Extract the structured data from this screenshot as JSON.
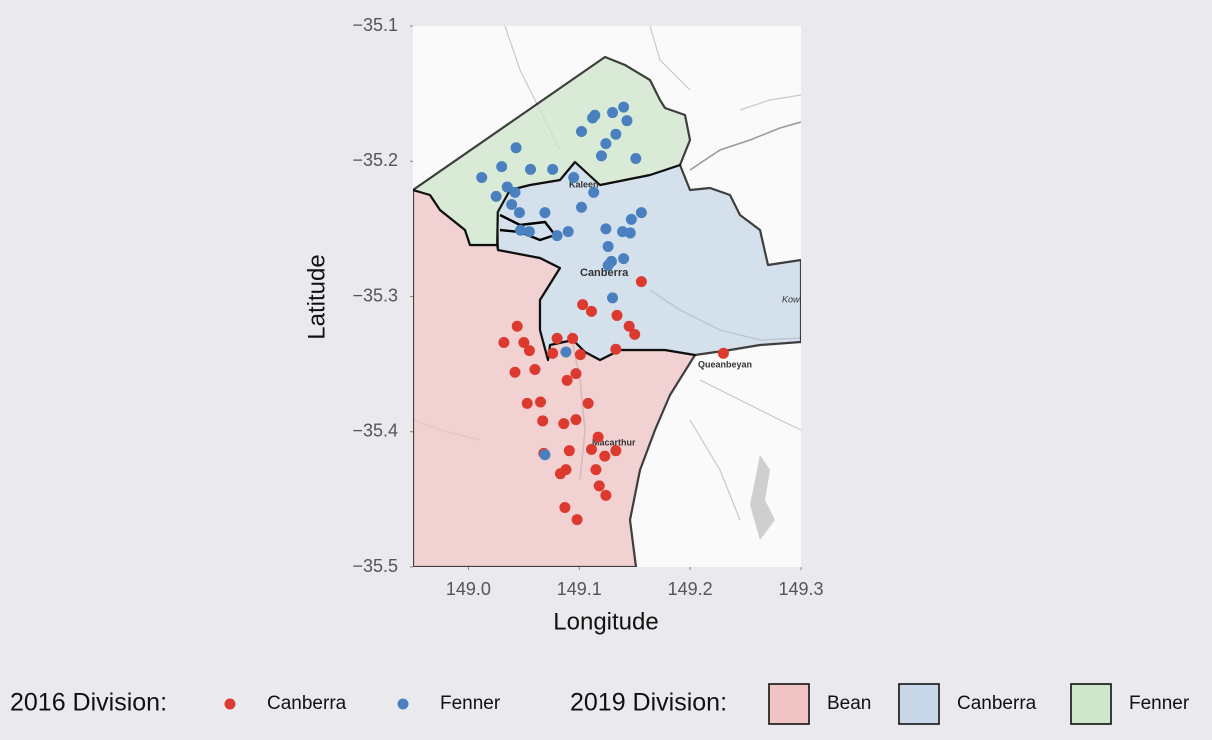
{
  "chart_data": {
    "type": "scatter",
    "xlabel": "Longitude",
    "ylabel": "Latitude",
    "xlim": [
      148.95,
      149.3
    ],
    "ylim": [
      -35.5,
      -35.1
    ],
    "xticks": [
      {
        "value": 149.0,
        "label": "149.0"
      },
      149.1,
      149.2,
      149.3
    ],
    "yticks": [
      {
        "value": -35.1,
        "label": "−35.1"
      },
      {
        "value": -35.2,
        "label": "−35.2"
      },
      {
        "value": -35.3,
        "label": "−35.3"
      },
      {
        "value": -35.4,
        "label": "−35.4"
      },
      {
        "value": -35.5,
        "label": "−35.5"
      }
    ],
    "map_labels": [
      "Kaleen",
      "Canberra",
      "Queanbeyan",
      "Macarthur",
      "Kowe"
    ],
    "legend_title": "2016 Division:",
    "series": [
      {
        "name": "Canberra",
        "color": "#dc3a2f",
        "x": [
          149.156,
          149.103,
          149.111,
          149.134,
          149.145,
          149.15,
          149.08,
          149.094,
          149.076,
          149.101,
          149.133,
          149.23,
          149.044,
          149.032,
          149.05,
          149.055,
          149.042,
          149.06,
          149.089,
          149.097,
          149.053,
          149.065,
          149.108,
          149.067,
          149.086,
          149.097,
          149.117,
          149.111,
          149.123,
          149.133,
          149.091,
          149.068,
          149.083,
          149.088,
          149.115,
          149.118,
          149.124,
          149.087,
          149.098
        ],
        "values": [
          -35.289,
          -35.306,
          -35.311,
          -35.314,
          -35.322,
          -35.328,
          -35.331,
          -35.331,
          -35.342,
          -35.343,
          -35.339,
          -35.342,
          -35.322,
          -35.334,
          -35.334,
          -35.34,
          -35.356,
          -35.354,
          -35.362,
          -35.357,
          -35.379,
          -35.378,
          -35.379,
          -35.392,
          -35.394,
          -35.391,
          -35.404,
          -35.413,
          -35.418,
          -35.414,
          -35.414,
          -35.416,
          -35.431,
          -35.428,
          -35.428,
          -35.44,
          -35.447,
          -35.456,
          -35.465
        ]
      },
      {
        "name": "Fenner",
        "color": "#4a80c0",
        "x": [
          149.114,
          149.13,
          149.14,
          149.143,
          149.112,
          149.102,
          149.133,
          149.124,
          149.151,
          149.12,
          149.043,
          149.012,
          149.03,
          149.056,
          149.076,
          149.035,
          149.042,
          149.025,
          149.039,
          149.046,
          149.095,
          149.113,
          149.102,
          149.069,
          149.047,
          149.055,
          149.08,
          149.09,
          149.124,
          149.139,
          149.146,
          149.147,
          149.156,
          149.126,
          149.129,
          149.126,
          149.14,
          149.13,
          149.088,
          149.069
        ],
        "values": [
          -35.166,
          -35.164,
          -35.16,
          -35.17,
          -35.168,
          -35.178,
          -35.18,
          -35.187,
          -35.198,
          -35.196,
          -35.19,
          -35.212,
          -35.204,
          -35.206,
          -35.206,
          -35.219,
          -35.223,
          -35.226,
          -35.232,
          -35.238,
          -35.212,
          -35.223,
          -35.234,
          -35.238,
          -35.251,
          -35.252,
          -35.255,
          -35.252,
          -35.25,
          -35.252,
          -35.253,
          -35.243,
          -35.238,
          -35.263,
          -35.274,
          -35.277,
          -35.272,
          -35.301,
          -35.341,
          -35.417
        ]
      }
    ],
    "regions": {
      "title": "2019 Division:",
      "items": [
        {
          "name": "Bean",
          "color": "#f0c4c5"
        },
        {
          "name": "Canberra",
          "color": "#c8d8e8"
        },
        {
          "name": "Fenner",
          "color": "#cfe6cb"
        }
      ]
    }
  }
}
